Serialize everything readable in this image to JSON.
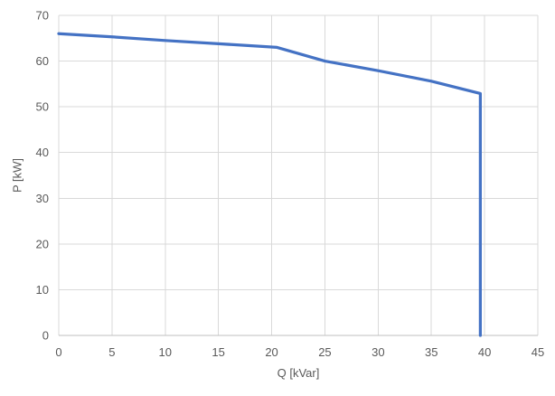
{
  "chart": {
    "background": "#ffffff",
    "series_color": "#4472C4",
    "gridline_color": "#d9d9d9",
    "axis_line_color": "#bfbfbf",
    "tick_color": "#595959",
    "tick_font_size": 13
  },
  "chart_data": {
    "type": "line",
    "xlabel": "Q [kVar]",
    "ylabel": "P [kW]",
    "xlim": [
      0,
      45
    ],
    "ylim": [
      0,
      70
    ],
    "x_ticks": [
      0,
      5,
      10,
      15,
      20,
      25,
      30,
      35,
      40,
      45
    ],
    "y_ticks": [
      0,
      10,
      20,
      30,
      40,
      50,
      60,
      70
    ],
    "grid": true,
    "legend": false,
    "series": [
      {
        "color": "#4472C4",
        "points": [
          [
            0,
            66
          ],
          [
            5,
            65.3
          ],
          [
            10,
            64.5
          ],
          [
            15,
            63.8
          ],
          [
            20.5,
            63
          ],
          [
            25,
            60
          ],
          [
            30,
            57.9
          ],
          [
            35,
            55.6
          ],
          [
            39.6,
            52.9
          ],
          [
            39.6,
            0
          ]
        ]
      }
    ]
  }
}
